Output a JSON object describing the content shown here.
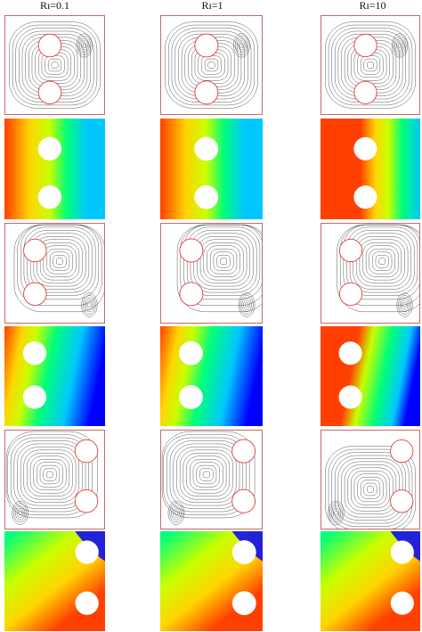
{
  "columns": [
    {
      "label": "Rı=0.1"
    },
    {
      "label": "Rı=1"
    },
    {
      "label": "Rı=10"
    }
  ],
  "colors": {
    "streamline": "#2a2a2a",
    "cylinder_outline": "#e23b3b",
    "cavity_border": "#c46a6a",
    "colormap": [
      "#0000ff",
      "#00c8ff",
      "#00ff7a",
      "#c8ff00",
      "#ffd400",
      "#ff4000"
    ]
  },
  "grid": {
    "rows": 6,
    "cols": 3,
    "row_types": [
      "streamlines",
      "temperature",
      "streamlines",
      "temperature",
      "streamlines",
      "temperature"
    ]
  }
}
